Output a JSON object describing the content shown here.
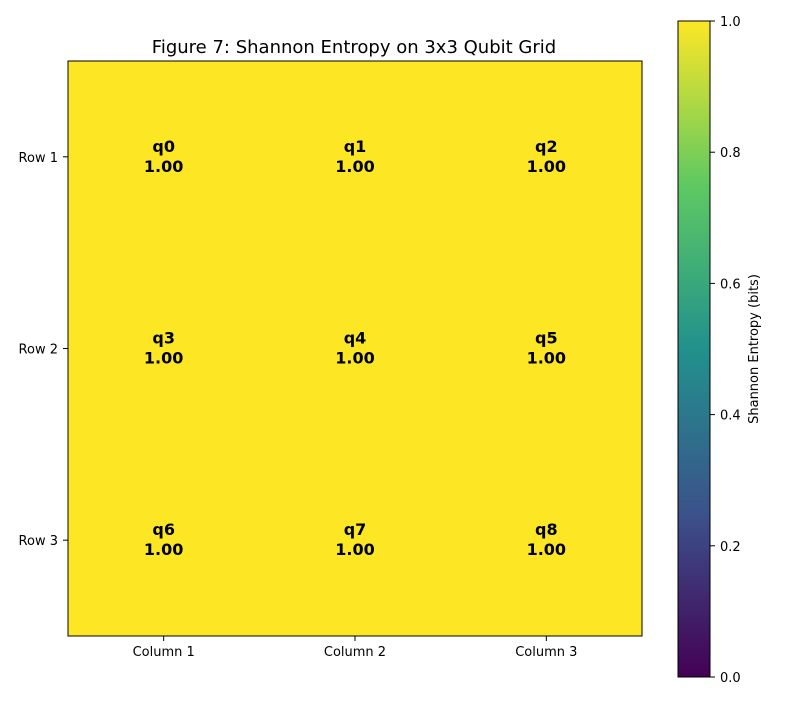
{
  "chart_data": {
    "type": "heatmap",
    "title": "Figure 7: Shannon Entropy on 3x3 Qubit Grid",
    "x_tick_labels": [
      "Column 1",
      "Column 2",
      "Column 3"
    ],
    "y_tick_labels": [
      "Row 1",
      "Row 2",
      "Row 3"
    ],
    "cells": [
      [
        {
          "label": "q0",
          "value": 1.0,
          "value_text": "1.00"
        },
        {
          "label": "q1",
          "value": 1.0,
          "value_text": "1.00"
        },
        {
          "label": "q2",
          "value": 1.0,
          "value_text": "1.00"
        }
      ],
      [
        {
          "label": "q3",
          "value": 1.0,
          "value_text": "1.00"
        },
        {
          "label": "q4",
          "value": 1.0,
          "value_text": "1.00"
        },
        {
          "label": "q5",
          "value": 1.0,
          "value_text": "1.00"
        }
      ],
      [
        {
          "label": "q6",
          "value": 1.0,
          "value_text": "1.00"
        },
        {
          "label": "q7",
          "value": 1.0,
          "value_text": "1.00"
        },
        {
          "label": "q8",
          "value": 1.0,
          "value_text": "1.00"
        }
      ]
    ],
    "colorbar": {
      "label": "Shannon Entropy (bits)",
      "range": [
        0,
        1
      ],
      "ticks": [
        "0.0",
        "0.2",
        "0.4",
        "0.6",
        "0.8",
        "1.0"
      ],
      "colormap": "viridis",
      "colormap_stops": [
        "#440154",
        "#3b528b",
        "#21918c",
        "#5ec962",
        "#fde725"
      ]
    },
    "grid": false
  }
}
